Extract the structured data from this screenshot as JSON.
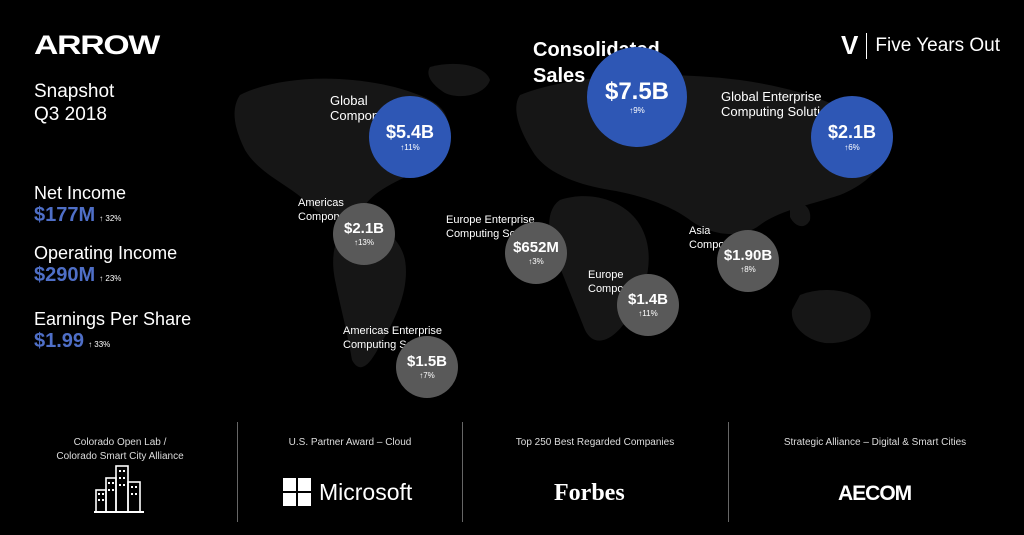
{
  "header": {
    "arrow_logo": "ARROW",
    "fyo_icon": "V",
    "fyo_text": "Five Years Out"
  },
  "snapshot": {
    "line1": "Snapshot",
    "line2": "Q3 2018"
  },
  "metrics": [
    {
      "label": "Net Income",
      "value": "$177M",
      "change": "↑ 32%"
    },
    {
      "label": "Operating Income",
      "value": "$290M",
      "change": "↑ 23%"
    },
    {
      "label": "Earnings Per Share",
      "value": "$1.99",
      "change": "↑ 33%"
    }
  ],
  "bubbles": {
    "consolidated": {
      "label1": "Consolidated",
      "label2": "Sales",
      "value": "$7.5B",
      "change": "↑9%"
    },
    "global_components": {
      "label1": "Global",
      "label2": "Components",
      "value": "$5.4B",
      "change": "↑11%"
    },
    "global_ecs": {
      "label1": "Global Enterprise",
      "label2": "Computing Solutions",
      "value": "$2.1B",
      "change": "↑6%"
    },
    "americas_components": {
      "label1": "Americas",
      "label2": "Components",
      "value": "$2.1B",
      "change": "↑13%"
    },
    "europe_ecs": {
      "label1": "Europe Enterprise",
      "label2": "Computing Solutions",
      "value": "$652M",
      "change": "↑3%"
    },
    "asia_components": {
      "label1": "Asia",
      "label2": "Components",
      "value": "$1.90B",
      "change": "↑8%"
    },
    "europe_components": {
      "label1": "Europe",
      "label2": "Components",
      "value": "$1.4B",
      "change": "↑11%"
    },
    "americas_ecs": {
      "label1": "Americas Enterprise",
      "label2": "Computing Solutions",
      "value": "$1.5B",
      "change": "↑7%"
    }
  },
  "footer": [
    {
      "caption1": "Colorado Open Lab /",
      "caption2": "Colorado Smart City Alliance",
      "brand": "city-buildings-icon"
    },
    {
      "caption1": "U.S. Partner Award – Cloud",
      "caption2": "",
      "brand": "Microsoft"
    },
    {
      "caption1": "Top 250 Best Regarded Companies",
      "caption2": "",
      "brand": "Forbes"
    },
    {
      "caption1": "Strategic Alliance – Digital & Smart Cities",
      "caption2": "",
      "brand": "AECOM"
    }
  ],
  "colors": {
    "blue_bubble": "#2e57b5",
    "gray_bubble": "#595959",
    "metric_value": "#4f6fc7",
    "background": "#000000"
  }
}
